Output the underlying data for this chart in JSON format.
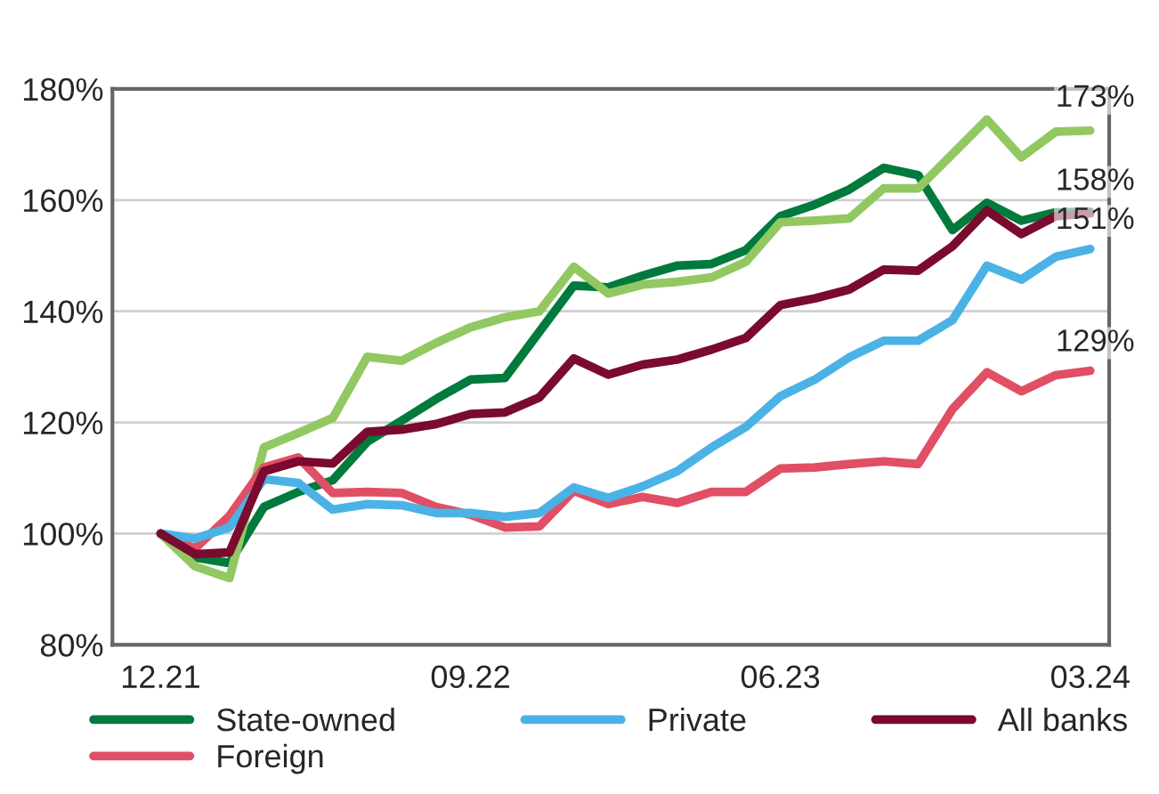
{
  "chart_data": {
    "type": "line",
    "categories": [
      "12.21",
      null,
      null,
      null,
      null,
      null,
      null,
      null,
      null,
      "09.22",
      null,
      null,
      null,
      null,
      null,
      null,
      null,
      null,
      "06.23",
      null,
      null,
      null,
      null,
      null,
      null,
      null,
      null,
      "03.24"
    ],
    "series": [
      {
        "name": "State-owned",
        "color": "#007a3d",
        "values": [
          100,
          95.7,
          94.7,
          104.8,
          107.5,
          109.6,
          116.5,
          120.3,
          124.2,
          127.7,
          128,
          136.3,
          144.6,
          144.3,
          146.4,
          148.2,
          148.5,
          151,
          157.1,
          159.2,
          161.9,
          165.8,
          164.5,
          154.6,
          159.5,
          156.3,
          157.8,
          157.9
        ]
      },
      {
        "color": "#92c862",
        "values": [
          100,
          94.1,
          92,
          115.5,
          118.1,
          120.8,
          131.8,
          131.1,
          134.3,
          137.1,
          138.9,
          140,
          148,
          143.2,
          144.8,
          145.3,
          146.1,
          148.9,
          156,
          156.3,
          156.7,
          162.1,
          162.1,
          168.3,
          174.5,
          167.7,
          172.3,
          172.5
        ]
      },
      {
        "name": "Foreign",
        "color": "#e04f64",
        "values": [
          100,
          97.3,
          103.2,
          111.9,
          113.7,
          107.3,
          107.5,
          107.3,
          104.8,
          103.4,
          101.1,
          101.3,
          107.7,
          105.3,
          106.6,
          105.5,
          107.5,
          107.5,
          111.7,
          111.9,
          112.5,
          113,
          112.5,
          122.4,
          129,
          125.6,
          128.5,
          129.3
        ]
      },
      {
        "name": "Private",
        "color": "#4bb2e6",
        "values": [
          100,
          99.1,
          101.1,
          109.8,
          109.1,
          104.3,
          105.3,
          105.1,
          103.7,
          103.7,
          103,
          103.7,
          108.3,
          106.4,
          108.5,
          111.2,
          115.5,
          119.2,
          124.7,
          127.7,
          131.7,
          134.7,
          134.7,
          138.4,
          148.2,
          145.7,
          149.8,
          151.2
        ]
      },
      {
        "name": "All banks",
        "color": "#7a0a2e",
        "values": [
          100,
          96.3,
          96.6,
          111.2,
          113,
          112.6,
          118.3,
          118.7,
          119.7,
          121.5,
          121.8,
          124.5,
          131.5,
          128.6,
          130.4,
          131.3,
          133.1,
          135.2,
          141.1,
          142.3,
          143.9,
          147.5,
          147.3,
          151.7,
          158.1,
          153.9,
          157.1,
          157.6
        ]
      }
    ],
    "ylim": [
      80,
      180
    ],
    "yticks": [
      {
        "value": 80,
        "label": "80%"
      },
      {
        "value": 100,
        "label": "100%"
      },
      {
        "value": 120,
        "label": "120%"
      },
      {
        "value": 140,
        "label": "140%"
      },
      {
        "value": 160,
        "label": "160%"
      },
      {
        "value": 180,
        "label": "180%"
      }
    ],
    "annotations": [
      {
        "text": "173%",
        "x": "03.24",
        "y": 173
      },
      {
        "text": "158%",
        "x": "03.24",
        "y": 158
      },
      {
        "text": "151%",
        "x": "03.24",
        "y": 151
      },
      {
        "text": "129%",
        "x": "03.24",
        "y": 129
      }
    ],
    "grid": "y",
    "legend": "bottom",
    "line_style": "solid"
  }
}
